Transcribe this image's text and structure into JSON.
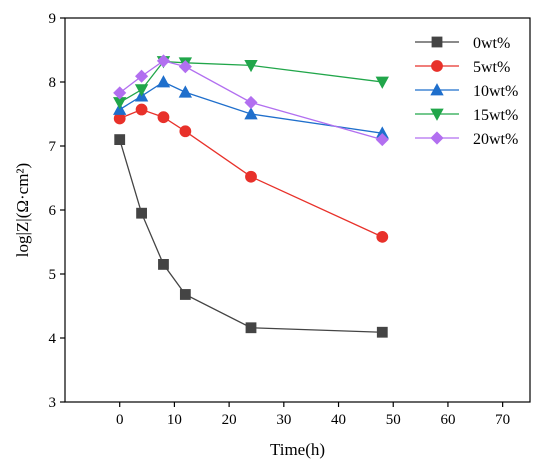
{
  "chart_data": {
    "type": "line",
    "xlabel": "Time(h)",
    "ylabel": "log|Z|(Ω·cm²)",
    "xlim": [
      -10,
      75
    ],
    "ylim": [
      3,
      9
    ],
    "x_ticks": [
      0,
      10,
      20,
      30,
      40,
      50,
      60,
      70
    ],
    "y_ticks": [
      3,
      4,
      5,
      6,
      7,
      8,
      9
    ],
    "x_tick_labels": [
      "0",
      "10",
      "20",
      "30",
      "40",
      "50",
      "60",
      "70"
    ],
    "y_tick_labels": [
      "3",
      "4",
      "5",
      "6",
      "7",
      "8",
      "9"
    ],
    "x": [
      0,
      4,
      8,
      12,
      24,
      48
    ],
    "legend_position": "top-right",
    "grid": false,
    "series": [
      {
        "name": "0wt%",
        "color": "#444444",
        "marker": "square",
        "values": [
          7.1,
          5.95,
          5.15,
          4.68,
          4.16,
          4.09
        ]
      },
      {
        "name": "5wt%",
        "color": "#e8312a",
        "marker": "circle",
        "values": [
          7.43,
          7.57,
          7.45,
          7.23,
          6.52,
          5.58
        ]
      },
      {
        "name": "10wt%",
        "color": "#1f6fcc",
        "marker": "triangle-up",
        "values": [
          7.57,
          7.78,
          8.0,
          7.84,
          7.5,
          7.2
        ]
      },
      {
        "name": "15wt%",
        "color": "#21a64a",
        "marker": "triangle-down",
        "values": [
          7.68,
          7.88,
          8.32,
          8.3,
          8.26,
          8.0
        ]
      },
      {
        "name": "20wt%",
        "color": "#b26ff0",
        "marker": "diamond",
        "values": [
          7.83,
          8.09,
          8.33,
          8.24,
          7.68,
          7.1
        ]
      }
    ]
  }
}
